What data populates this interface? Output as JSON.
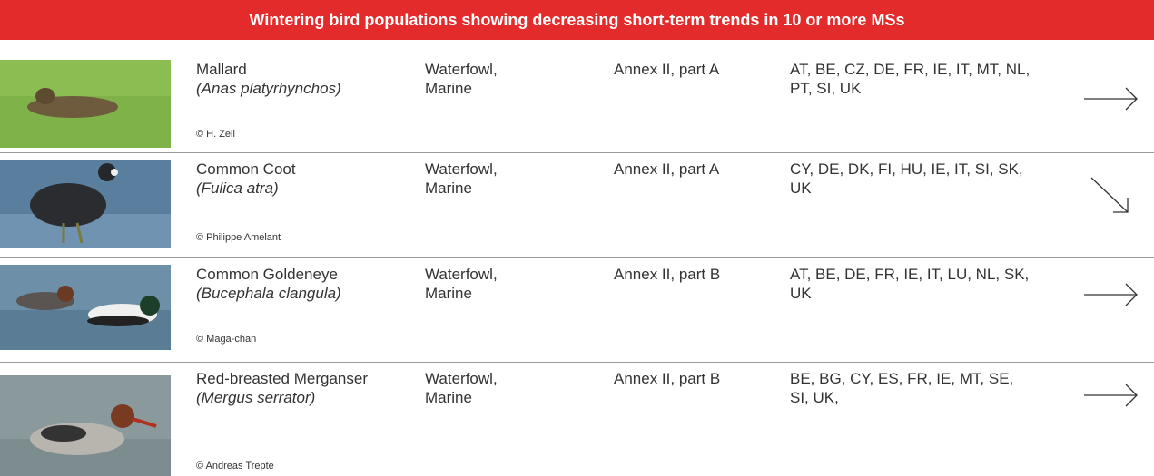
{
  "header": {
    "title": "Wintering bird populations showing decreasing short-term trends in 10 or more MSs"
  },
  "rows": [
    {
      "common_name": "Mallard",
      "scientific_name": "(Anas platyrhynchos)",
      "credit": "© H. Zell",
      "group": "Waterfowl, Marine",
      "annex": "Annex II, part A",
      "countries": "AT, BE, CZ, DE, FR, IE, IT, MT, NL, PT, SI, UK"
    },
    {
      "common_name": "Common Coot",
      "scientific_name": "(Fulica atra)",
      "credit": "© Philippe Amelant",
      "group": "Waterfowl, Marine",
      "annex": "Annex II, part A",
      "countries": "CY, DE, DK, FI, HU, IE, IT, SI, SK, UK"
    },
    {
      "common_name": "Common Goldeneye",
      "scientific_name": "(Bucephala clangula)",
      "credit": "© Maga-chan",
      "group": "Waterfowl, Marine",
      "annex": "Annex II, part B",
      "countries": "AT, BE, DE, FR, IE, IT, LU, NL, SK, UK"
    },
    {
      "common_name": "Red-breasted Merganser",
      "scientific_name": "(Mergus serrator)",
      "credit": "© Andreas Trepte",
      "group": "Waterfowl, Marine",
      "annex": "Annex II, part B",
      "countries": "BE, BG, CY, ES, FR, IE, MT, SE, SI, UK,"
    }
  ]
}
